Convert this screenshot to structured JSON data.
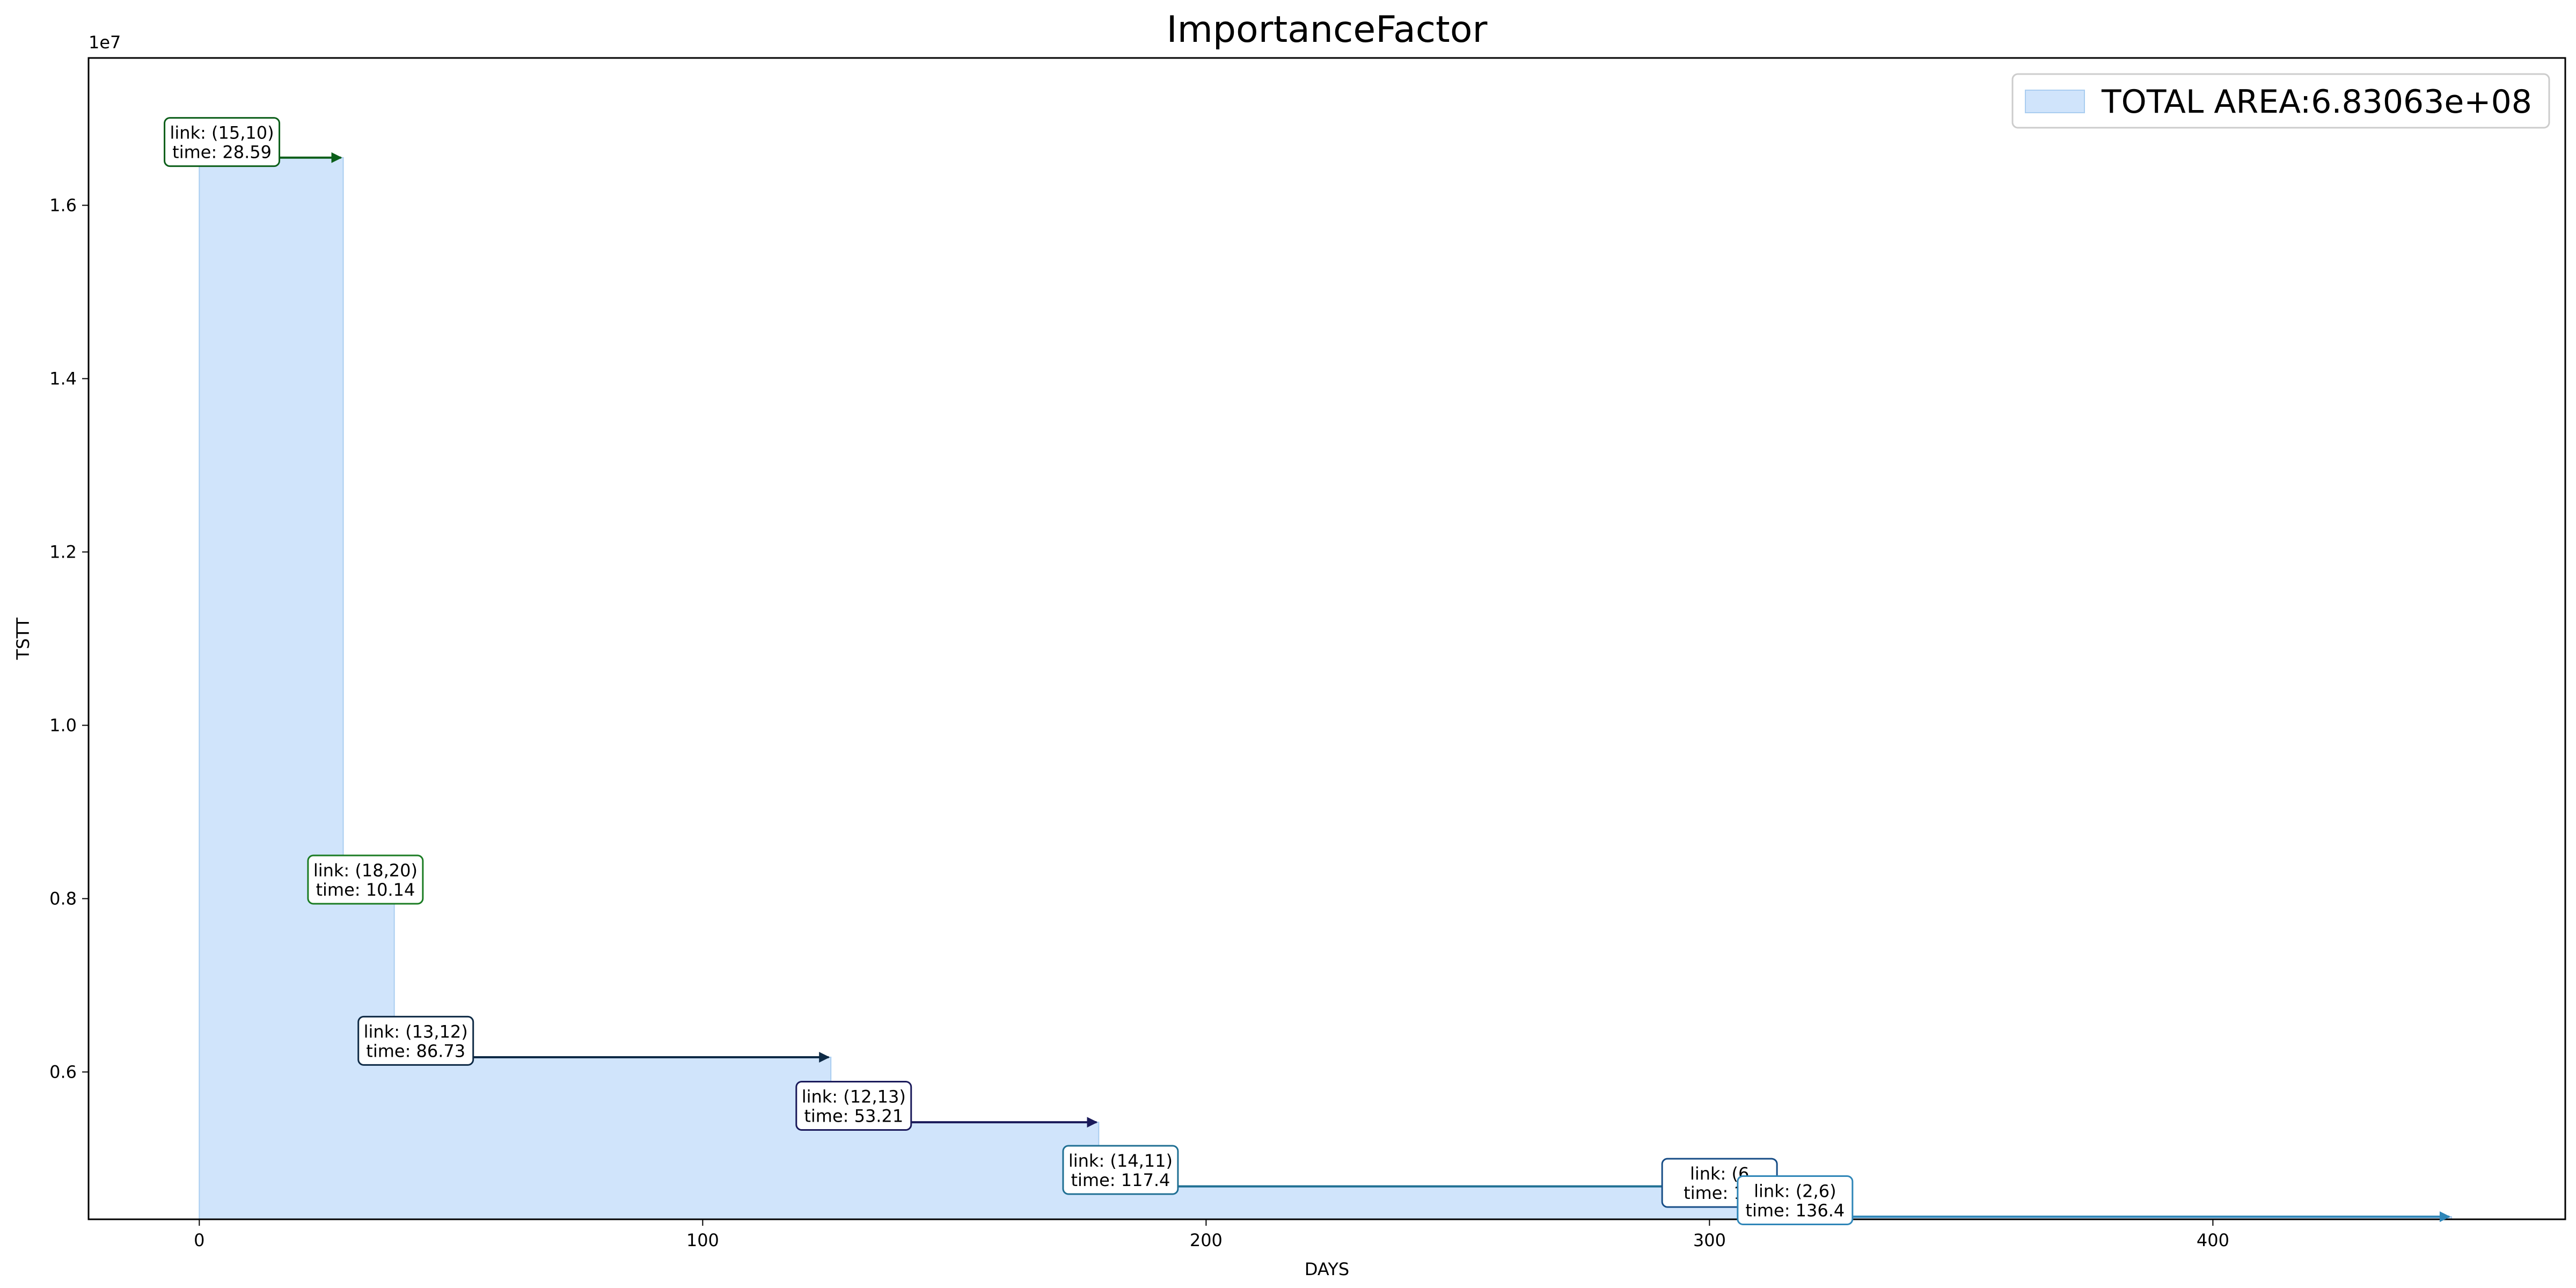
{
  "chart_data": {
    "type": "area",
    "title": "ImportanceFactor",
    "xlabel": "DAYS",
    "ylabel": "TSTT",
    "y_offset_label": "1e7",
    "xlim": [
      -22,
      470
    ],
    "ylim": [
      0.43,
      1.77
    ],
    "x_ticks": [
      0,
      100,
      200,
      300,
      400
    ],
    "x_tick_labels": [
      "0",
      "100",
      "200",
      "300",
      "400"
    ],
    "y_ticks": [
      0.6,
      0.8,
      1.0,
      1.2,
      1.4,
      1.6
    ],
    "y_tick_labels": [
      "0.6",
      "0.8",
      "1.0",
      "1.2",
      "1.4",
      "1.6"
    ],
    "grid": false,
    "fill_color": "#d0e4fb",
    "edge_color": "#a9cdf0",
    "legend": {
      "label": "TOTAL AREA:6.83063e+08",
      "location": "upper right"
    },
    "steps": [
      {
        "start": 0,
        "end": 28.59,
        "value": 1.655
      },
      {
        "start": 28.59,
        "end": 38.73,
        "value": 0.803
      },
      {
        "start": 38.73,
        "end": 125.46,
        "value": 0.617
      },
      {
        "start": 125.46,
        "end": 178.67,
        "value": 0.542
      },
      {
        "start": 178.67,
        "end": 296.07,
        "value": 0.468
      },
      {
        "start": 296.07,
        "end": 311.0,
        "value": 0.453
      },
      {
        "start": 311.0,
        "end": 447.4,
        "value": 0.433
      }
    ],
    "annotations": [
      {
        "link": "link: (15,10)",
        "time": "time: 28.59",
        "x_start": 0,
        "x_end": 28.59,
        "y": 1.655,
        "text_x": 4.5,
        "text_y": 1.673,
        "color": "#0b5e19"
      },
      {
        "link": "link: (18,20)",
        "time": "time: 10.14",
        "x_start": 28.59,
        "x_end": 38.73,
        "y": 0.803,
        "text_x": 33,
        "text_y": 0.822,
        "color": "#1b7c23"
      },
      {
        "link": "link: (13,12)",
        "time": "time: 86.73",
        "x_start": 38.73,
        "x_end": 125.46,
        "y": 0.617,
        "text_x": 43,
        "text_y": 0.636,
        "color": "#0e2a45"
      },
      {
        "link": "link: (12,13)",
        "time": "time: 53.21",
        "x_start": 125.46,
        "x_end": 178.67,
        "y": 0.542,
        "text_x": 130,
        "text_y": 0.561,
        "color": "#1a1a5a"
      },
      {
        "link": "link: (14,11)",
        "time": "time: 117.4",
        "x_start": 178.67,
        "x_end": 296.07,
        "y": 0.468,
        "text_x": 183,
        "text_y": 0.487,
        "color": "#1f6f93"
      },
      {
        "link": "link: (6",
        "time": "time: 15",
        "x_start": 296.07,
        "x_end": 311.0,
        "y": 0.453,
        "text_x": 302,
        "text_y": 0.472,
        "color": "#174d86"
      },
      {
        "link": "link: (2,6)",
        "time": "time: 136.4",
        "x_start": 311.0,
        "x_end": 447.4,
        "y": 0.433,
        "text_x": 317,
        "text_y": 0.452,
        "color": "#2f86b8"
      }
    ]
  }
}
